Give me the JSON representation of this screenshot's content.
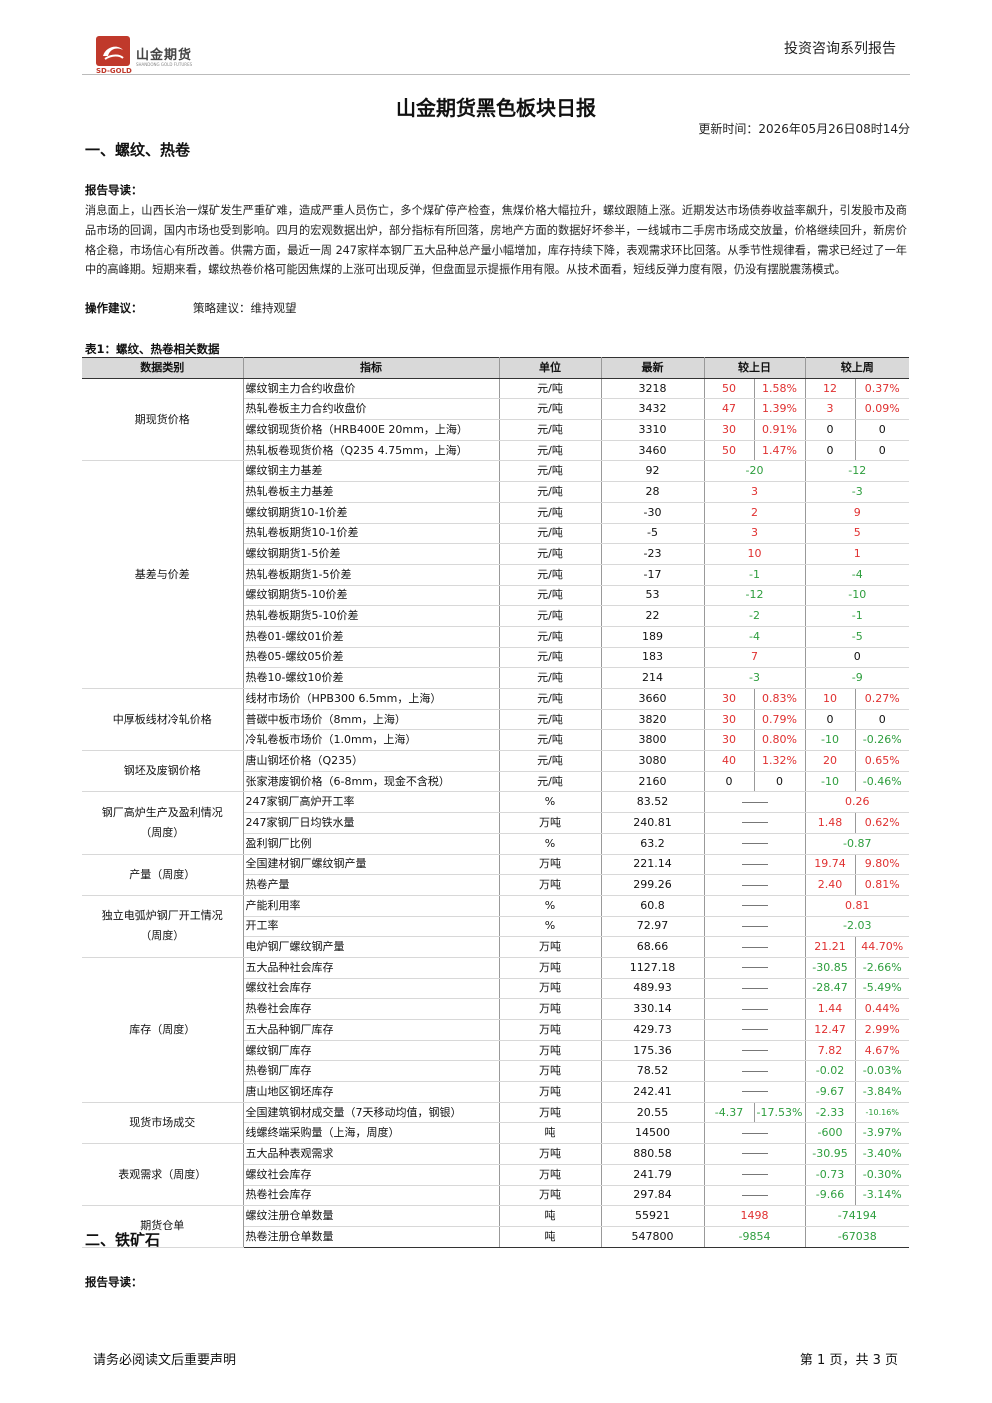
{
  "header": {
    "company_name": "山金期货",
    "company_en": "SD-GOLD",
    "company_en_full": "SHANDONG GOLD FUTURES",
    "series": "投资咨询系列报告"
  },
  "title": "山金期货黑色板块日报",
  "update_time": "更新时间：2026年05月26日08时14分",
  "section1": {
    "heading": "一、螺纹、热卷",
    "guide_label": "报告导读：",
    "guide_text": "消息面上，山西长治一煤矿发生严重矿难，造成严重人员伤亡，多个煤矿停产检查，焦煤价格大幅拉升，螺纹跟随上涨。近期发达市场债券收益率飙升，引发股市及商品市场的回调，国内市场也受到影响。四月的宏观数据出炉，部分指标有所回落，房地产方面的数据好坏参半，一线城市二手房市场成交放量，价格继续回升，新房价格企稳，市场信心有所改善。供需方面，最近一周 247家样本钢厂五大品种总产量小幅增加，库存持续下降，表观需求环比回落。从季节性规律看，需求已经过了一年中的高峰期。短期来看，螺纹热卷价格可能因焦煤的上涨可出现反弹，但盘面显示提振作用有限。从技术面看，短线反弹力度有限，仍没有摆脱震荡模式。",
    "op_label": "操作建议：",
    "op_text": "策略建议：维持观望",
    "table_caption": "表1：螺纹、热卷相关数据",
    "table_headers": [
      "数据类别",
      "指标",
      "单位",
      "最新",
      "较上日",
      "较上周"
    ],
    "c": {
      "futures_spot": "期现货价格",
      "basis_spread": "基差与价差",
      "plate_wire": "中厚板线材冷轧价格",
      "billet_scrap": "钢坯及废钢价格",
      "furnace_a": "钢厂高炉生产及盈利情况",
      "furnace_b": "（周度）",
      "output": "产量（周度）",
      "eaf_a": "独立电弧炉钢厂开工情况",
      "eaf_b": "（周度）",
      "inventory": "库存（周度）",
      "spot_trade": "现货市场成交",
      "apparent": "表观需求（周度）",
      "warrant": "期货仓单"
    },
    "rows": [
      {
        "ind": "螺纹钢主力合约收盘价",
        "unit": "元/吨",
        "latest": "3218",
        "d1": "50",
        "d2": "1.58%",
        "w1": "12",
        "w2": "0.37%"
      },
      {
        "ind": "热轧卷板主力合约收盘价",
        "unit": "元/吨",
        "latest": "3432",
        "d1": "47",
        "d2": "1.39%",
        "w1": "3",
        "w2": "0.09%"
      },
      {
        "ind": "螺纹钢现货价格（HRB400E 20mm，上海）",
        "unit": "元/吨",
        "latest": "3310",
        "d1": "30",
        "d2": "0.91%",
        "w1": "0",
        "w2": "0"
      },
      {
        "ind": "热轧板卷现货价格（Q235 4.75mm，上海）",
        "unit": "元/吨",
        "latest": "3460",
        "d1": "50",
        "d2": "1.47%",
        "w1": "0",
        "w2": "0"
      },
      {
        "ind": "螺纹钢主力基差",
        "unit": "元/吨",
        "latest": "92",
        "d": "-20",
        "w": "-12"
      },
      {
        "ind": "热轧卷板主力基差",
        "unit": "元/吨",
        "latest": "28",
        "d": "3",
        "w": "-3"
      },
      {
        "ind": "螺纹钢期货10-1价差",
        "unit": "元/吨",
        "latest": "-30",
        "d": "2",
        "w": "9"
      },
      {
        "ind": "热轧卷板期货10-1价差",
        "unit": "元/吨",
        "latest": "-5",
        "d": "3",
        "w": "5"
      },
      {
        "ind": "螺纹钢期货1-5价差",
        "unit": "元/吨",
        "latest": "-23",
        "d": "10",
        "w": "1"
      },
      {
        "ind": "热轧卷板期货1-5价差",
        "unit": "元/吨",
        "latest": "-17",
        "d": "-1",
        "w": "-4"
      },
      {
        "ind": "螺纹钢期货5-10价差",
        "unit": "元/吨",
        "latest": "53",
        "d": "-12",
        "w": "-10"
      },
      {
        "ind": "热轧卷板期货5-10价差",
        "unit": "元/吨",
        "latest": "22",
        "d": "-2",
        "w": "-1"
      },
      {
        "ind": "热卷01-螺纹01价差",
        "unit": "元/吨",
        "latest": "189",
        "d": "-4",
        "w": "-5"
      },
      {
        "ind": "热卷05-螺纹05价差",
        "unit": "元/吨",
        "latest": "183",
        "d": "7",
        "w": "0"
      },
      {
        "ind": "热卷10-螺纹10价差",
        "unit": "元/吨",
        "latest": "214",
        "d": "-3",
        "w": "-9"
      },
      {
        "ind": "线材市场价（HPB300 6.5mm，上海）",
        "unit": "元/吨",
        "latest": "3660",
        "d1": "30",
        "d2": "0.83%",
        "w1": "10",
        "w2": "0.27%"
      },
      {
        "ind": "普碳中板市场价（8mm，上海）",
        "unit": "元/吨",
        "latest": "3820",
        "d1": "30",
        "d2": "0.79%",
        "w1": "0",
        "w2": "0"
      },
      {
        "ind": "冷轧卷板市场价（1.0mm，上海）",
        "unit": "元/吨",
        "latest": "3800",
        "d1": "30",
        "d2": "0.80%",
        "w1": "-10",
        "w2": "-0.26%"
      },
      {
        "ind": "唐山钢坯价格（Q235）",
        "unit": "元/吨",
        "latest": "3080",
        "d1": "40",
        "d2": "1.32%",
        "w1": "20",
        "w2": "0.65%"
      },
      {
        "ind": "张家港废钢价格（6-8mm，现金不含税）",
        "unit": "元/吨",
        "latest": "2160",
        "d1": "0",
        "d2": "0",
        "w1": "-10",
        "w2": "-0.46%"
      },
      {
        "ind": "247家钢厂高炉开工率",
        "unit": "%",
        "latest": "83.52",
        "w": "0.26"
      },
      {
        "ind": "247家钢厂日均铁水量",
        "unit": "万吨",
        "latest": "240.81",
        "w1": "1.48",
        "w2": "0.62%"
      },
      {
        "ind": "盈利钢厂比例",
        "unit": "%",
        "latest": "63.2",
        "w": "-0.87"
      },
      {
        "ind": "全国建材钢厂螺纹钢产量",
        "unit": "万吨",
        "latest": "221.14",
        "w1": "19.74",
        "w2": "9.80%"
      },
      {
        "ind": "热卷产量",
        "unit": "万吨",
        "latest": "299.26",
        "w1": "2.40",
        "w2": "0.81%"
      },
      {
        "ind": "产能利用率",
        "unit": "%",
        "latest": "60.8",
        "w": "0.81"
      },
      {
        "ind": "开工率",
        "unit": "%",
        "latest": "72.97",
        "w": "-2.03"
      },
      {
        "ind": "电炉钢厂螺纹钢产量",
        "unit": "万吨",
        "latest": "68.66",
        "w1": "21.21",
        "w2": "44.70%"
      },
      {
        "ind": "五大品种社会库存",
        "unit": "万吨",
        "latest": "1127.18",
        "w1": "-30.85",
        "w2": "-2.66%"
      },
      {
        "ind": "螺纹社会库存",
        "unit": "万吨",
        "latest": "489.93",
        "w1": "-28.47",
        "w2": "-5.49%"
      },
      {
        "ind": "热卷社会库存",
        "unit": "万吨",
        "latest": "330.14",
        "w1": "1.44",
        "w2": "0.44%"
      },
      {
        "ind": "五大品种钢厂库存",
        "unit": "万吨",
        "latest": "429.73",
        "w1": "12.47",
        "w2": "2.99%"
      },
      {
        "ind": "螺纹钢厂库存",
        "unit": "万吨",
        "latest": "175.36",
        "w1": "7.82",
        "w2": "4.67%"
      },
      {
        "ind": "热卷钢厂库存",
        "unit": "万吨",
        "latest": "78.52",
        "w1": "-0.02",
        "w2": "-0.03%"
      },
      {
        "ind": "唐山地区钢坯库存",
        "unit": "万吨",
        "latest": "242.41",
        "w1": "-9.67",
        "w2": "-3.84%"
      },
      {
        "ind": "全国建筑钢材成交量（7天移动均值，钢银）",
        "unit": "万吨",
        "latest": "20.55",
        "d1": "-4.37",
        "d2": "-17.53%",
        "w1": "-2.33",
        "w2": "-10.16%"
      },
      {
        "ind": "线螺终端采购量（上海，周度）",
        "unit": "吨",
        "latest": "14500",
        "w1": "-600",
        "w2": "-3.97%"
      },
      {
        "ind": "五大品种表观需求",
        "unit": "万吨",
        "latest": "880.58",
        "w1": "-30.95",
        "w2": "-3.40%"
      },
      {
        "ind": "螺纹社会库存",
        "unit": "万吨",
        "latest": "241.79",
        "w1": "-0.73",
        "w2": "-0.30%"
      },
      {
        "ind": "热卷社会库存",
        "unit": "万吨",
        "latest": "297.84",
        "w1": "-9.66",
        "w2": "-3.14%"
      },
      {
        "ind": "螺纹注册仓单数量",
        "unit": "吨",
        "latest": "55921",
        "d": "1498",
        "w": "-74194"
      },
      {
        "ind": "热卷注册仓单数量",
        "unit": "吨",
        "latest": "547800",
        "d": "-9854",
        "w": "-67038"
      }
    ]
  },
  "section2": {
    "heading": "二、铁矿石",
    "guide_label": "报告导读："
  },
  "footer": {
    "left": "请务必阅读文后重要声明",
    "right": "第 1 页，共 3 页"
  },
  "colors": {
    "up": "#e03030",
    "down": "#2e9e3e",
    "logo": "#c0392b"
  }
}
